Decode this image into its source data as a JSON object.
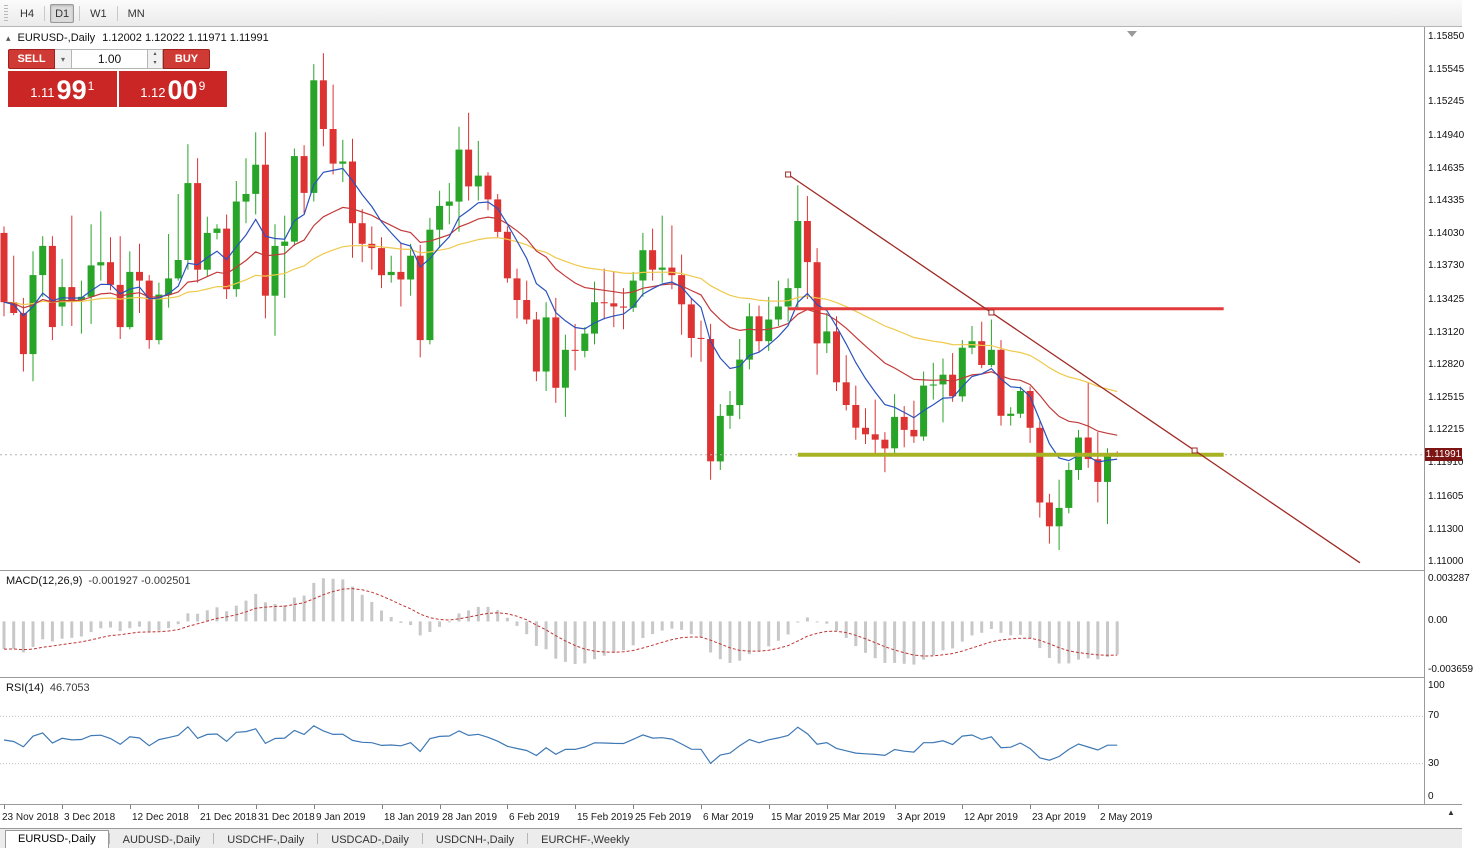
{
  "toolbar": {
    "timeframes": [
      {
        "label": "H4",
        "active": false
      },
      {
        "label": "D1",
        "active": true
      },
      {
        "label": "W1",
        "active": false
      },
      {
        "label": "MN",
        "active": false
      }
    ]
  },
  "chart": {
    "title": "EURUSD-,Daily",
    "ohlc_text": "1.12002 1.12022 1.11971 1.11991",
    "current_price": "1.11991",
    "trade_panel": {
      "sell_label": "SELL",
      "buy_label": "BUY",
      "volume": "1.00",
      "sell_price": {
        "prefix": "1.11",
        "big": "99",
        "sup": "1"
      },
      "buy_price": {
        "prefix": "1.12",
        "big": "00",
        "sup": "9"
      }
    },
    "price_scale": [
      "1.15850",
      "1.15545",
      "1.15245",
      "1.14940",
      "1.14635",
      "1.14335",
      "1.14030",
      "1.13730",
      "1.13425",
      "1.13120",
      "1.12820",
      "1.12515",
      "1.12215",
      "1.11910",
      "1.11605",
      "1.11300",
      "1.11000"
    ]
  },
  "macd": {
    "label": "MACD(12,26,9)",
    "values": "-0.001927 -0.002501",
    "scale": [
      "0.003287",
      "0.00",
      "-0.003659"
    ]
  },
  "rsi": {
    "label": "RSI(14)",
    "value": "46.7053",
    "scale": [
      "100",
      "70",
      "30",
      "0"
    ]
  },
  "date_axis": [
    {
      "label": "23 Nov 2018",
      "index": 0
    },
    {
      "label": "3 Dec 2018",
      "index": 6
    },
    {
      "label": "12 Dec 2018",
      "index": 13
    },
    {
      "label": "21 Dec 2018",
      "index": 20
    },
    {
      "label": "31 Dec 2018",
      "index": 26
    },
    {
      "label": "9 Jan 2019",
      "index": 32
    },
    {
      "label": "18 Jan 2019",
      "index": 39
    },
    {
      "label": "28 Jan 2019",
      "index": 45
    },
    {
      "label": "6 Feb 2019",
      "index": 52
    },
    {
      "label": "15 Feb 2019",
      "index": 59
    },
    {
      "label": "25 Feb 2019",
      "index": 65
    },
    {
      "label": "6 Mar 2019",
      "index": 72
    },
    {
      "label": "15 Mar 2019",
      "index": 79
    },
    {
      "label": "25 Mar 2019",
      "index": 85
    },
    {
      "label": "3 Apr 2019",
      "index": 92
    },
    {
      "label": "12 Apr 2019",
      "index": 99
    },
    {
      "label": "23 Apr 2019",
      "index": 106
    },
    {
      "label": "2 May 2019",
      "index": 113
    }
  ],
  "tabs": [
    {
      "label": "EURUSD-,Daily",
      "active": true
    },
    {
      "label": "AUDUSD-,Daily",
      "active": false
    },
    {
      "label": "USDCHF-,Daily",
      "active": false
    },
    {
      "label": "USDCAD-,Daily",
      "active": false
    },
    {
      "label": "USDCNH-,Daily",
      "active": false
    },
    {
      "label": "EURCHF-,Weekly",
      "active": false
    }
  ],
  "icons": {
    "one_click_toggle": "▴",
    "volume_dropdown": "▾",
    "spin_up": "▴",
    "spin_down": "▾",
    "scroll_end": "▲"
  },
  "chart_data": {
    "type": "candlestick",
    "symbol": "EURUSD-",
    "timeframe": "Daily",
    "price_axis": {
      "min": 1.11,
      "max": 1.1585
    },
    "colors": {
      "up": "#28A428",
      "down": "#DD3333",
      "bid_line": "#B4B4B4"
    },
    "overlays": [
      {
        "name": "ma-slow-line",
        "type": "ema",
        "period": 50,
        "color": "#EFC94C"
      },
      {
        "name": "ma-mid-line",
        "type": "ema",
        "period": 21,
        "color": "#C23B3B"
      },
      {
        "name": "ma-fast-line",
        "type": "ema",
        "period": 8,
        "color": "#2A52BE"
      }
    ],
    "objects": {
      "trendline": {
        "from": {
          "index": 81,
          "price": 1.1458
        },
        "to": {
          "index": 123,
          "price": 1.1203
        },
        "ray": true,
        "color": "#9E2B25"
      },
      "resistance": {
        "price": 1.1334,
        "from_index": 81,
        "to_index": 126,
        "width": 3,
        "color": "#E23B3B"
      },
      "support": {
        "price": 1.1199,
        "from_index": 82,
        "to_index": 126,
        "width": 4,
        "color": "#A8B324"
      }
    },
    "indicators": {
      "macd": {
        "fast": 12,
        "slow": 26,
        "signal": 9,
        "main": -0.001927,
        "signal_value": -0.002501,
        "range": [
          -0.003659,
          0.003287
        ],
        "histogram_color": "#C8C8C8",
        "signal_color": "#C03535"
      },
      "rsi": {
        "period": 14,
        "value": 46.7053,
        "levels": [
          70,
          30
        ],
        "range": [
          0,
          100
        ],
        "color": "#3E78B4",
        "level_color": "#C0C0C0"
      }
    },
    "candles": [
      [
        "2018.11.23",
        1.1404,
        1.141,
        1.1327,
        1.134
      ],
      [
        "2018.11.26",
        1.134,
        1.1383,
        1.1328,
        1.133
      ],
      [
        "2018.11.27",
        1.133,
        1.1344,
        1.1276,
        1.1292
      ],
      [
        "2018.11.28",
        1.1292,
        1.1387,
        1.1267,
        1.1365
      ],
      [
        "2018.11.29",
        1.1365,
        1.1401,
        1.1345,
        1.1392
      ],
      [
        "2018.11.30",
        1.1392,
        1.1401,
        1.1305,
        1.1317
      ],
      [
        "2018.12.03",
        1.1336,
        1.138,
        1.1318,
        1.1354
      ],
      [
        "2018.12.04",
        1.1354,
        1.142,
        1.1318,
        1.1342
      ],
      [
        "2018.12.05",
        1.1342,
        1.136,
        1.1311,
        1.1345
      ],
      [
        "2018.12.06",
        1.1345,
        1.1412,
        1.132,
        1.1374
      ],
      [
        "2018.12.07",
        1.1374,
        1.1424,
        1.136,
        1.1377
      ],
      [
        "2018.12.10",
        1.1377,
        1.14,
        1.1351,
        1.1356
      ],
      [
        "2018.12.11",
        1.1356,
        1.1401,
        1.1306,
        1.1317
      ],
      [
        "2018.12.12",
        1.1317,
        1.1387,
        1.1315,
        1.1368
      ],
      [
        "2018.12.13",
        1.1368,
        1.1394,
        1.133,
        1.136
      ],
      [
        "2018.12.14",
        1.136,
        1.1365,
        1.1297,
        1.1305
      ],
      [
        "2018.12.17",
        1.1305,
        1.1358,
        1.1301,
        1.1347
      ],
      [
        "2018.12.18",
        1.1347,
        1.1403,
        1.1335,
        1.1362
      ],
      [
        "2018.12.19",
        1.1362,
        1.144,
        1.136,
        1.1379
      ],
      [
        "2018.12.20",
        1.1379,
        1.1486,
        1.137,
        1.145
      ],
      [
        "2018.12.21",
        1.145,
        1.1473,
        1.1358,
        1.137
      ],
      [
        "2018.12.24",
        1.137,
        1.1419,
        1.1364,
        1.1404
      ],
      [
        "2018.12.25",
        1.1404,
        1.1412,
        1.1398,
        1.1408
      ],
      [
        "2018.12.26",
        1.1408,
        1.1421,
        1.1343,
        1.1352
      ],
      [
        "2018.12.27",
        1.1352,
        1.1452,
        1.1345,
        1.1433
      ],
      [
        "2018.12.28",
        1.1433,
        1.1473,
        1.1413,
        1.144
      ],
      [
        "2018.12.31",
        1.144,
        1.1497,
        1.1421,
        1.1467
      ],
      [
        "2019.01.02",
        1.1467,
        1.1497,
        1.1325,
        1.1346
      ],
      [
        "2019.01.03",
        1.1346,
        1.1412,
        1.1309,
        1.1392
      ],
      [
        "2019.01.04",
        1.1392,
        1.142,
        1.1344,
        1.1396
      ],
      [
        "2019.01.07",
        1.1396,
        1.1482,
        1.1392,
        1.1475
      ],
      [
        "2019.01.08",
        1.1475,
        1.1485,
        1.1422,
        1.1441
      ],
      [
        "2019.01.09",
        1.1441,
        1.156,
        1.1433,
        1.1545
      ],
      [
        "2019.01.10",
        1.1545,
        1.157,
        1.1484,
        1.15
      ],
      [
        "2019.01.11",
        1.15,
        1.1541,
        1.1458,
        1.1468
      ],
      [
        "2019.01.14",
        1.1468,
        1.149,
        1.1451,
        1.147
      ],
      [
        "2019.01.15",
        1.147,
        1.1491,
        1.1381,
        1.1413
      ],
      [
        "2019.01.16",
        1.1413,
        1.1426,
        1.1377,
        1.1394
      ],
      [
        "2019.01.17",
        1.1394,
        1.141,
        1.137,
        1.139
      ],
      [
        "2019.01.18",
        1.139,
        1.14,
        1.1353,
        1.1365
      ],
      [
        "2019.01.21",
        1.1365,
        1.1383,
        1.1358,
        1.1368
      ],
      [
        "2019.01.22",
        1.1368,
        1.1395,
        1.1336,
        1.1361
      ],
      [
        "2019.01.23",
        1.1361,
        1.1394,
        1.1346,
        1.1383
      ],
      [
        "2019.01.24",
        1.1383,
        1.1393,
        1.1289,
        1.1305
      ],
      [
        "2019.01.25",
        1.1305,
        1.1418,
        1.1301,
        1.1407
      ],
      [
        "2019.01.28",
        1.1407,
        1.1443,
        1.139,
        1.1429
      ],
      [
        "2019.01.29",
        1.1429,
        1.145,
        1.1412,
        1.1433
      ],
      [
        "2019.01.30",
        1.1433,
        1.1502,
        1.1405,
        1.1481
      ],
      [
        "2019.01.31",
        1.1481,
        1.1515,
        1.1434,
        1.1447
      ],
      [
        "2019.02.01",
        1.1447,
        1.1489,
        1.1434,
        1.1457
      ],
      [
        "2019.02.04",
        1.1457,
        1.146,
        1.1425,
        1.1435
      ],
      [
        "2019.02.05",
        1.1435,
        1.144,
        1.14,
        1.1405
      ],
      [
        "2019.02.06",
        1.1405,
        1.141,
        1.1358,
        1.1362
      ],
      [
        "2019.02.07",
        1.1362,
        1.1371,
        1.1325,
        1.1342
      ],
      [
        "2019.02.08",
        1.1342,
        1.136,
        1.132,
        1.1324
      ],
      [
        "2019.02.11",
        1.1324,
        1.1331,
        1.1267,
        1.1276
      ],
      [
        "2019.02.12",
        1.1276,
        1.134,
        1.1258,
        1.1326
      ],
      [
        "2019.02.13",
        1.1326,
        1.1344,
        1.1247,
        1.1261
      ],
      [
        "2019.02.14",
        1.1261,
        1.131,
        1.1234,
        1.1296
      ],
      [
        "2019.02.15",
        1.1296,
        1.132,
        1.1277,
        1.1295
      ],
      [
        "2019.02.18",
        1.1295,
        1.1317,
        1.1289,
        1.1311
      ],
      [
        "2019.02.19",
        1.1311,
        1.1359,
        1.1301,
        1.134
      ],
      [
        "2019.02.20",
        1.134,
        1.1371,
        1.1324,
        1.1339
      ],
      [
        "2019.02.21",
        1.1339,
        1.1368,
        1.1317,
        1.1336
      ],
      [
        "2019.02.22",
        1.1336,
        1.1353,
        1.1315,
        1.1335
      ],
      [
        "2019.02.25",
        1.1335,
        1.1368,
        1.1331,
        1.136
      ],
      [
        "2019.02.26",
        1.136,
        1.1404,
        1.1345,
        1.1388
      ],
      [
        "2019.02.27",
        1.1388,
        1.1408,
        1.136,
        1.137
      ],
      [
        "2019.02.28",
        1.137,
        1.142,
        1.1358,
        1.1372
      ],
      [
        "2019.03.01",
        1.1372,
        1.1411,
        1.1352,
        1.1365
      ],
      [
        "2019.03.04",
        1.1365,
        1.1384,
        1.131,
        1.1338
      ],
      [
        "2019.03.05",
        1.1338,
        1.1344,
        1.1289,
        1.1307
      ],
      [
        "2019.03.06",
        1.1307,
        1.1323,
        1.1285,
        1.1306
      ],
      [
        "2019.03.07",
        1.1306,
        1.132,
        1.1176,
        1.1193
      ],
      [
        "2019.03.08",
        1.1193,
        1.1246,
        1.1185,
        1.1235
      ],
      [
        "2019.03.11",
        1.1235,
        1.1258,
        1.1223,
        1.1245
      ],
      [
        "2019.03.12",
        1.1245,
        1.1306,
        1.1232,
        1.1287
      ],
      [
        "2019.03.13",
        1.1287,
        1.1339,
        1.1278,
        1.1327
      ],
      [
        "2019.03.14",
        1.1327,
        1.1337,
        1.1294,
        1.1304
      ],
      [
        "2019.03.15",
        1.1304,
        1.1345,
        1.1295,
        1.1324
      ],
      [
        "2019.03.18",
        1.1324,
        1.136,
        1.1318,
        1.1336
      ],
      [
        "2019.03.19",
        1.1336,
        1.1362,
        1.1322,
        1.1353
      ],
      [
        "2019.03.20",
        1.1353,
        1.1448,
        1.1335,
        1.1415
      ],
      [
        "2019.03.21",
        1.1415,
        1.1438,
        1.1343,
        1.1377
      ],
      [
        "2019.03.22",
        1.1377,
        1.139,
        1.1273,
        1.1302
      ],
      [
        "2019.03.25",
        1.1302,
        1.133,
        1.1293,
        1.1313
      ],
      [
        "2019.03.26",
        1.1313,
        1.1327,
        1.1258,
        1.1266
      ],
      [
        "2019.03.27",
        1.1266,
        1.1291,
        1.124,
        1.1245
      ],
      [
        "2019.03.28",
        1.1245,
        1.1263,
        1.1213,
        1.1224
      ],
      [
        "2019.03.29",
        1.1224,
        1.1242,
        1.1209,
        1.1218
      ],
      [
        "2019.04.01",
        1.1218,
        1.125,
        1.1199,
        1.1213
      ],
      [
        "2019.04.02",
        1.1213,
        1.122,
        1.1183,
        1.1205
      ],
      [
        "2019.04.03",
        1.1205,
        1.1255,
        1.12,
        1.1234
      ],
      [
        "2019.04.04",
        1.1234,
        1.1244,
        1.1206,
        1.1222
      ],
      [
        "2019.04.05",
        1.1222,
        1.1249,
        1.121,
        1.1216
      ],
      [
        "2019.04.08",
        1.1216,
        1.1276,
        1.1212,
        1.1263
      ],
      [
        "2019.04.09",
        1.1263,
        1.1284,
        1.125,
        1.1264
      ],
      [
        "2019.04.10",
        1.1264,
        1.1288,
        1.1229,
        1.1273
      ],
      [
        "2019.04.11",
        1.1273,
        1.1293,
        1.1248,
        1.1253
      ],
      [
        "2019.04.12",
        1.1253,
        1.1305,
        1.1248,
        1.1298
      ],
      [
        "2019.04.15",
        1.1298,
        1.1318,
        1.1292,
        1.1304
      ],
      [
        "2019.04.16",
        1.1304,
        1.1322,
        1.1279,
        1.1282
      ],
      [
        "2019.04.17",
        1.1282,
        1.1324,
        1.128,
        1.1296
      ],
      [
        "2019.04.18",
        1.1296,
        1.1305,
        1.1226,
        1.1235
      ],
      [
        "2019.04.19",
        1.1235,
        1.1243,
        1.1226,
        1.1237
      ],
      [
        "2019.04.22",
        1.1237,
        1.1262,
        1.1233,
        1.1258
      ],
      [
        "2019.04.23",
        1.1258,
        1.1262,
        1.121,
        1.1224
      ],
      [
        "2019.04.24",
        1.1224,
        1.123,
        1.1141,
        1.1155
      ],
      [
        "2019.04.25",
        1.1155,
        1.1163,
        1.1117,
        1.1133
      ],
      [
        "2019.04.26",
        1.1133,
        1.1176,
        1.1111,
        1.115
      ],
      [
        "2019.04.29",
        1.115,
        1.1192,
        1.1145,
        1.1185
      ],
      [
        "2019.04.30",
        1.1185,
        1.1222,
        1.1176,
        1.1215
      ],
      [
        "2019.05.01",
        1.1215,
        1.1266,
        1.1187,
        1.1195
      ],
      [
        "2019.05.02",
        1.1195,
        1.122,
        1.1155,
        1.1174
      ],
      [
        "2019.05.03",
        1.1174,
        1.1205,
        1.1135,
        1.1199
      ],
      [
        "2019.05.06",
        1.12002,
        1.12022,
        1.11971,
        1.11991
      ]
    ]
  }
}
